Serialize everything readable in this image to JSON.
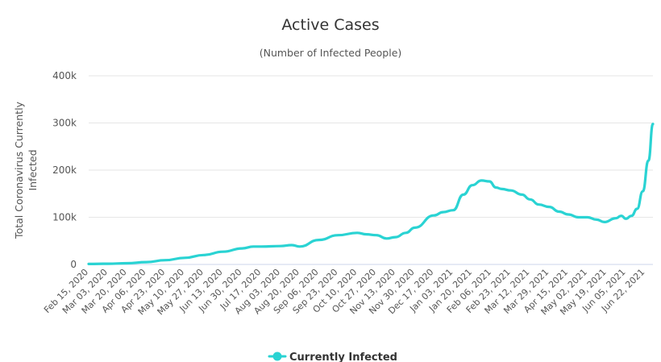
{
  "chart_data": {
    "type": "line",
    "title": "Active Cases",
    "subtitle": "(Number of Infected People)",
    "ylabel_lines": [
      "Total Coronavirus Currently",
      "Infected"
    ],
    "xlabel": "",
    "ylim": [
      0,
      400000
    ],
    "y_ticks": [
      0,
      100000,
      200000,
      300000,
      400000
    ],
    "y_tick_labels": [
      "0",
      "100k",
      "200k",
      "300k",
      "400k"
    ],
    "x_tick_labels": [
      "Feb 15, 2020",
      "Mar 03, 2020",
      "Mar 20, 2020",
      "Apr 06, 2020",
      "Apr 23, 2020",
      "May 10, 2020",
      "May 27, 2020",
      "Jun 13, 2020",
      "Jun 30, 2020",
      "Jul 17, 2020",
      "Aug 03, 2020",
      "Aug 20, 2020",
      "Sep 06, 2020",
      "Sep 23, 2020",
      "Oct 10, 2020",
      "Oct 27, 2020",
      "Nov 13, 2020",
      "Nov 30, 2020",
      "Dec 17, 2020",
      "Jan 03, 2021",
      "Jan 20, 2021",
      "Feb 06, 2021",
      "Feb 23, 2021",
      "Mar 12, 2021",
      "Mar 29, 2021",
      "Apr 15, 2021",
      "May 02, 2021",
      "May 19, 2021",
      "Jun 05, 2021",
      "Jun 22, 2021"
    ],
    "grid": true,
    "legend_position": "bottom-center",
    "series": [
      {
        "name": "Currently Infected",
        "color": "#2ad3d3",
        "x": [
          "2020-02-15",
          "2020-03-03",
          "2020-03-20",
          "2020-04-06",
          "2020-04-23",
          "2020-05-10",
          "2020-05-27",
          "2020-06-13",
          "2020-06-30",
          "2020-07-10",
          "2020-07-17",
          "2020-08-03",
          "2020-08-13",
          "2020-08-20",
          "2020-09-06",
          "2020-09-23",
          "2020-10-10",
          "2020-10-18",
          "2020-10-27",
          "2020-11-05",
          "2020-11-13",
          "2020-11-22",
          "2020-11-30",
          "2020-12-17",
          "2020-12-25",
          "2021-01-03",
          "2021-01-12",
          "2021-01-20",
          "2021-01-28",
          "2021-02-04",
          "2021-02-10",
          "2021-02-15",
          "2021-02-23",
          "2021-03-05",
          "2021-03-12",
          "2021-03-20",
          "2021-03-29",
          "2021-04-07",
          "2021-04-15",
          "2021-04-24",
          "2021-05-02",
          "2021-05-10",
          "2021-05-17",
          "2021-05-27",
          "2021-06-01",
          "2021-06-05",
          "2021-06-10",
          "2021-06-15",
          "2021-06-20",
          "2021-06-25",
          "2021-06-29"
        ],
        "values": [
          1000,
          1500,
          2500,
          5000,
          9000,
          14000,
          20000,
          27000,
          34000,
          38000,
          38000,
          39000,
          41000,
          38000,
          52000,
          62000,
          67000,
          64000,
          62000,
          55000,
          58000,
          67000,
          78000,
          104000,
          111000,
          115000,
          148000,
          168000,
          178000,
          176000,
          163000,
          160000,
          157000,
          148000,
          138000,
          127000,
          122000,
          112000,
          106000,
          100000,
          100000,
          95000,
          90000,
          98000,
          103000,
          97000,
          103000,
          118000,
          155000,
          220000,
          298000
        ]
      }
    ]
  }
}
